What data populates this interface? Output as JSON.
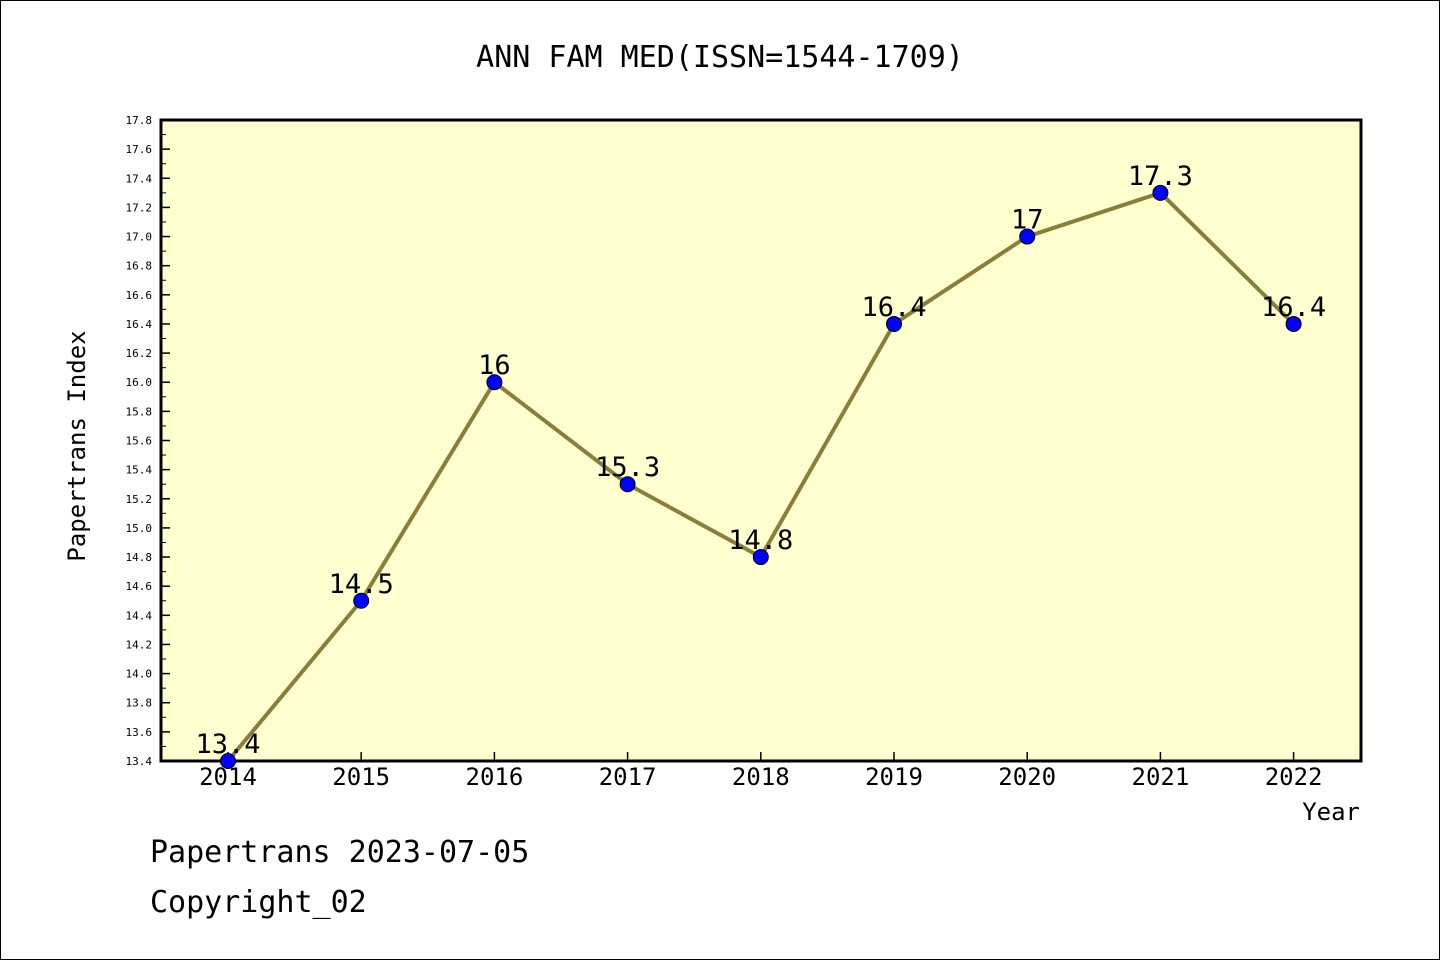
{
  "chart_data": {
    "type": "line",
    "title": "ANN FAM MED(ISSN=1544-1709)",
    "xlabel": "Year",
    "ylabel": "Papertrans Index",
    "categories": [
      "2014",
      "2015",
      "2016",
      "2017",
      "2018",
      "2019",
      "2020",
      "2021",
      "2022"
    ],
    "values": [
      13.4,
      14.5,
      16,
      15.3,
      14.8,
      16.4,
      17,
      17.3,
      16.4
    ],
    "data_labels": [
      "13.4",
      "14.5",
      "16",
      "15.3",
      "14.8",
      "16.4",
      "17",
      "17.3",
      "16.4"
    ],
    "ylim": [
      13.4,
      17.8
    ],
    "y_ticks": [
      "13.4",
      "13.6",
      "13.8",
      "14.0",
      "14.2",
      "14.4",
      "14.6",
      "14.8",
      "15.0",
      "15.2",
      "15.4",
      "15.6",
      "15.8",
      "16.0",
      "16.2",
      "16.4",
      "16.6",
      "16.8",
      "17.0",
      "17.2",
      "17.4",
      "17.6",
      "17.8"
    ],
    "grid": false,
    "colors": {
      "plot_background": "#ffffd0",
      "line": "#8b7d3a",
      "marker": "#0000ff"
    }
  },
  "footer": {
    "line1": "Papertrans 2023-07-05",
    "line2": "Copyright_02"
  }
}
